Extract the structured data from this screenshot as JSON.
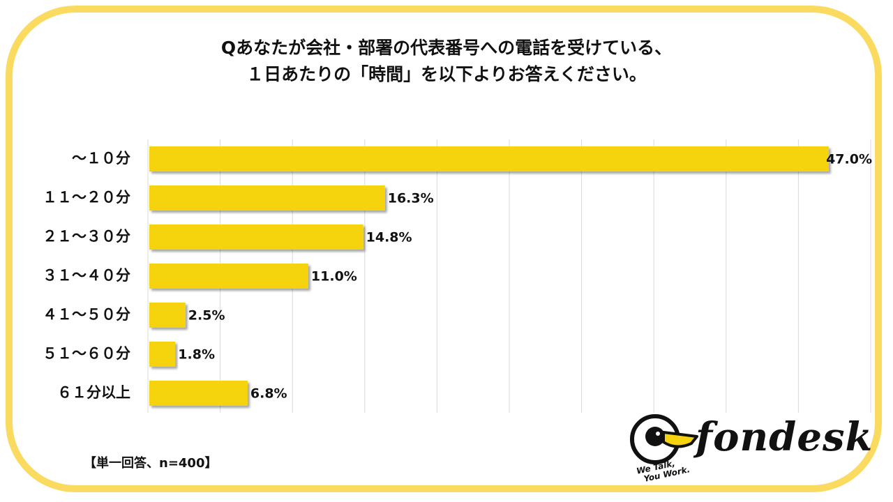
{
  "title": {
    "line1": "Qあなたが会社・部署の代表番号への電話を受けている、",
    "line2": "１日あたりの「時間」を以下よりお答えください。"
  },
  "footnote": "【単一回答、n=400】",
  "logo": {
    "name": "fondesk",
    "tagline_line1": "We Talk,",
    "tagline_line2": "You Work."
  },
  "colors": {
    "bar": "#f5d40f",
    "frame": "#fadb5f",
    "grid": "#d9d9d9"
  },
  "chart_data": {
    "type": "bar",
    "orientation": "horizontal",
    "categories": [
      "～１０分",
      "１１～２０分",
      "２１～３０分",
      "３１～４０分",
      "４１～５０分",
      "５１～６０分",
      "６１分以上"
    ],
    "values": [
      47.0,
      16.3,
      14.8,
      11.0,
      2.5,
      1.8,
      6.8
    ],
    "value_labels": [
      "47.0%",
      "16.3%",
      "14.8%",
      "11.0%",
      "2.5%",
      "1.8%",
      "6.8%"
    ],
    "xlim": [
      0,
      50
    ],
    "grid": true,
    "legend": "none"
  }
}
